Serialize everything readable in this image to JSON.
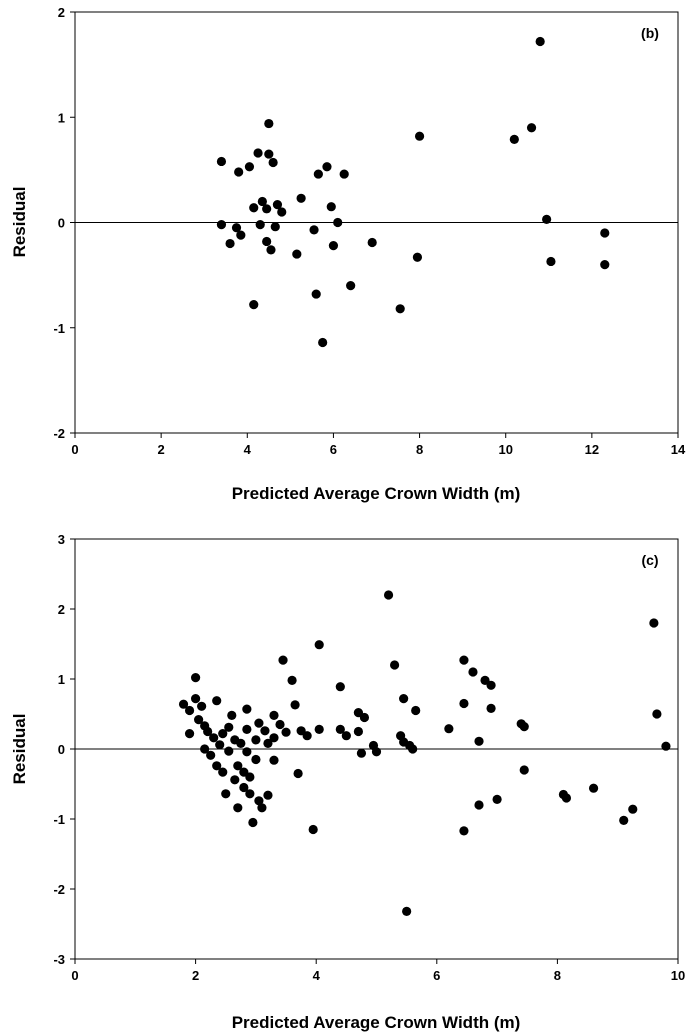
{
  "chart_data": [
    {
      "type": "scatter",
      "panel_label": "(b)",
      "xlabel": "Predicted Average Crown Width (m)",
      "ylabel": "Residual",
      "xlim": [
        0,
        14
      ],
      "ylim": [
        -2,
        2
      ],
      "x_ticks": [
        0,
        2,
        4,
        6,
        8,
        10,
        12,
        14
      ],
      "y_ticks": [
        -2,
        -1,
        0,
        1,
        2
      ],
      "reference_line_y": 0,
      "grid": false,
      "legend": "none",
      "marker_color": "#000000",
      "series": [
        {
          "points": [
            [
              3.4,
              0.58
            ],
            [
              3.4,
              -0.02
            ],
            [
              3.6,
              -0.2
            ],
            [
              3.75,
              -0.05
            ],
            [
              3.85,
              -0.12
            ],
            [
              3.8,
              0.48
            ],
            [
              4.05,
              0.53
            ],
            [
              4.15,
              0.14
            ],
            [
              4.15,
              -0.78
            ],
            [
              4.25,
              0.66
            ],
            [
              4.3,
              -0.02
            ],
            [
              4.35,
              0.2
            ],
            [
              4.45,
              0.13
            ],
            [
              4.45,
              -0.18
            ],
            [
              4.5,
              0.94
            ],
            [
              4.55,
              -0.26
            ],
            [
              4.5,
              0.65
            ],
            [
              4.6,
              0.57
            ],
            [
              4.65,
              -0.04
            ],
            [
              4.7,
              0.17
            ],
            [
              4.8,
              0.1
            ],
            [
              5.15,
              -0.3
            ],
            [
              5.25,
              0.23
            ],
            [
              5.55,
              -0.07
            ],
            [
              5.6,
              -0.68
            ],
            [
              5.65,
              0.46
            ],
            [
              5.75,
              -1.14
            ],
            [
              5.85,
              0.53
            ],
            [
              5.95,
              0.15
            ],
            [
              6.0,
              -0.22
            ],
            [
              6.1,
              0.0
            ],
            [
              6.25,
              0.46
            ],
            [
              6.4,
              -0.6
            ],
            [
              6.9,
              -0.19
            ],
            [
              7.55,
              -0.82
            ],
            [
              7.95,
              -0.33
            ],
            [
              8.0,
              0.82
            ],
            [
              10.2,
              0.79
            ],
            [
              10.6,
              0.9
            ],
            [
              10.8,
              1.72
            ],
            [
              10.95,
              0.03
            ],
            [
              11.05,
              -0.37
            ],
            [
              12.3,
              -0.1
            ],
            [
              12.3,
              -0.4
            ]
          ]
        }
      ]
    },
    {
      "type": "scatter",
      "panel_label": "(c)",
      "xlabel": "Predicted Average Crown Width (m)",
      "ylabel": "Residual",
      "xlim": [
        0,
        10
      ],
      "ylim": [
        -3,
        3
      ],
      "x_ticks": [
        0,
        2,
        4,
        6,
        8,
        10
      ],
      "y_ticks": [
        -3,
        -2,
        -1,
        0,
        1,
        2,
        3
      ],
      "reference_line_y": 0,
      "grid": false,
      "legend": "none",
      "marker_color": "#000000",
      "series": [
        {
          "points": [
            [
              1.8,
              0.64
            ],
            [
              1.9,
              0.55
            ],
            [
              1.9,
              0.22
            ],
            [
              2.0,
              1.02
            ],
            [
              2.0,
              0.72
            ],
            [
              2.05,
              0.42
            ],
            [
              2.1,
              0.61
            ],
            [
              2.15,
              0.33
            ],
            [
              2.15,
              0.0
            ],
            [
              2.2,
              0.25
            ],
            [
              2.25,
              -0.09
            ],
            [
              2.3,
              0.16
            ],
            [
              2.35,
              0.69
            ],
            [
              2.35,
              -0.24
            ],
            [
              2.4,
              0.06
            ],
            [
              2.45,
              0.22
            ],
            [
              2.45,
              -0.33
            ],
            [
              2.5,
              -0.64
            ],
            [
              2.55,
              0.31
            ],
            [
              2.55,
              -0.03
            ],
            [
              2.6,
              0.48
            ],
            [
              2.65,
              0.13
            ],
            [
              2.65,
              -0.44
            ],
            [
              2.7,
              -0.24
            ],
            [
              2.7,
              -0.84
            ],
            [
              2.75,
              0.08
            ],
            [
              2.8,
              -0.55
            ],
            [
              2.8,
              -0.33
            ],
            [
              2.85,
              0.57
            ],
            [
              2.85,
              0.28
            ],
            [
              2.85,
              -0.04
            ],
            [
              2.9,
              -0.64
            ],
            [
              2.9,
              -0.4
            ],
            [
              2.95,
              -1.05
            ],
            [
              3.0,
              0.13
            ],
            [
              3.0,
              -0.15
            ],
            [
              3.05,
              0.37
            ],
            [
              3.05,
              -0.74
            ],
            [
              3.1,
              -0.84
            ],
            [
              3.15,
              0.26
            ],
            [
              3.2,
              0.08
            ],
            [
              3.2,
              -0.66
            ],
            [
              3.3,
              0.48
            ],
            [
              3.3,
              0.16
            ],
            [
              3.3,
              -0.16
            ],
            [
              3.4,
              0.35
            ],
            [
              3.45,
              1.27
            ],
            [
              3.5,
              0.24
            ],
            [
              3.6,
              0.98
            ],
            [
              3.65,
              0.63
            ],
            [
              3.7,
              -0.35
            ],
            [
              3.75,
              0.26
            ],
            [
              3.85,
              0.19
            ],
            [
              3.95,
              -1.15
            ],
            [
              4.05,
              1.49
            ],
            [
              4.05,
              0.28
            ],
            [
              4.4,
              0.89
            ],
            [
              4.4,
              0.28
            ],
            [
              4.5,
              0.19
            ],
            [
              4.7,
              0.52
            ],
            [
              4.7,
              0.25
            ],
            [
              4.75,
              -0.06
            ],
            [
              4.8,
              0.45
            ],
            [
              4.95,
              0.05
            ],
            [
              5.0,
              -0.04
            ],
            [
              5.2,
              2.2
            ],
            [
              5.3,
              1.2
            ],
            [
              5.4,
              0.19
            ],
            [
              5.45,
              0.72
            ],
            [
              5.45,
              0.1
            ],
            [
              5.5,
              -2.32
            ],
            [
              5.55,
              0.05
            ],
            [
              5.6,
              0.0
            ],
            [
              5.65,
              0.55
            ],
            [
              6.2,
              0.29
            ],
            [
              6.45,
              1.27
            ],
            [
              6.45,
              0.65
            ],
            [
              6.45,
              -1.17
            ],
            [
              6.6,
              1.1
            ],
            [
              6.7,
              0.11
            ],
            [
              6.7,
              -0.8
            ],
            [
              6.8,
              0.98
            ],
            [
              6.9,
              0.91
            ],
            [
              6.9,
              0.58
            ],
            [
              7.0,
              -0.72
            ],
            [
              7.4,
              0.36
            ],
            [
              7.45,
              0.32
            ],
            [
              7.45,
              -0.3
            ],
            [
              8.1,
              -0.65
            ],
            [
              8.15,
              -0.7
            ],
            [
              8.6,
              -0.56
            ],
            [
              9.1,
              -1.02
            ],
            [
              9.25,
              -0.86
            ],
            [
              9.6,
              1.8
            ],
            [
              9.65,
              0.5
            ],
            [
              9.8,
              0.04
            ]
          ]
        }
      ]
    }
  ]
}
